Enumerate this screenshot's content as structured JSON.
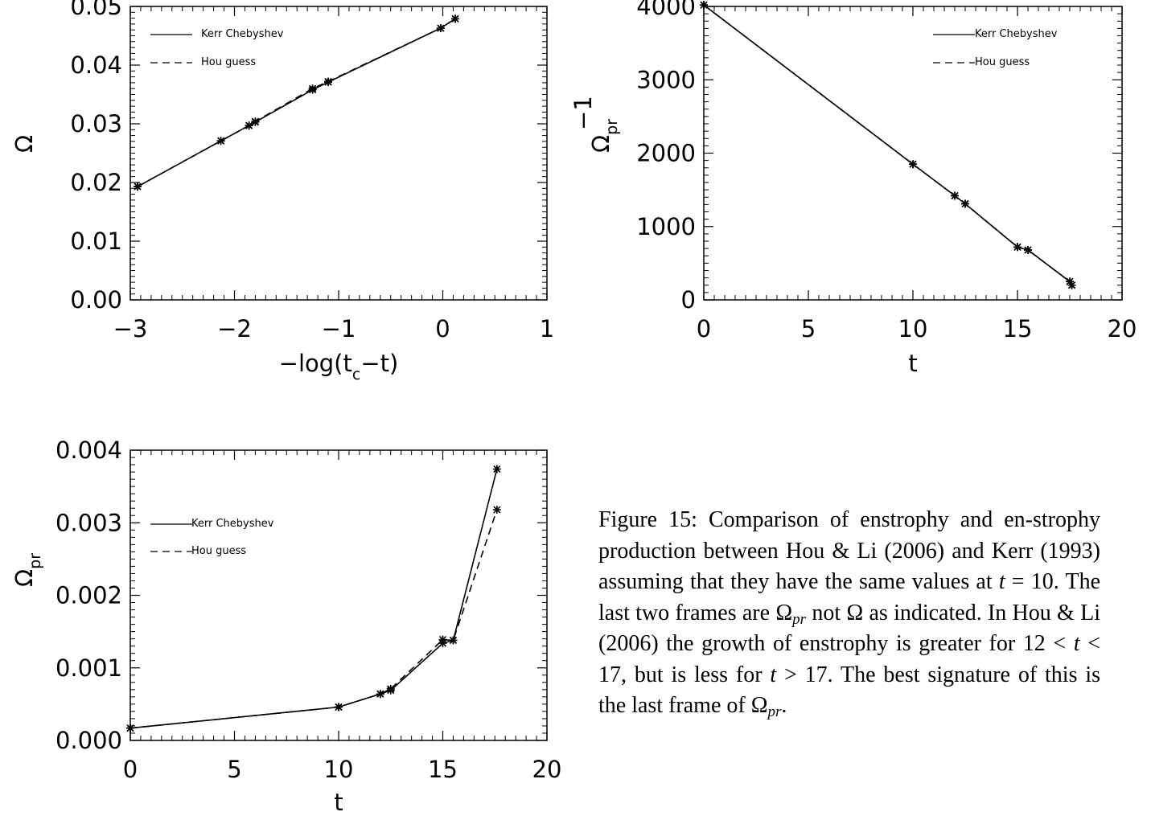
{
  "charts": [
    {
      "id": "omega",
      "type": "line",
      "xlabel": "−log(t  −t)",
      "xlabel_parts": {
        "pre": "−log(t",
        "sub": "c",
        "post": "−t)"
      },
      "ylabel": "Ω",
      "ylabel_sub": "",
      "xlim": [
        -3,
        1
      ],
      "ylim": [
        0.0,
        0.05
      ],
      "xticks": [
        -3,
        -2,
        -1,
        0,
        1
      ],
      "xtick_labels": [
        "−3",
        "−2",
        "−1",
        "0",
        "1"
      ],
      "yticks": [
        0.0,
        0.01,
        0.02,
        0.03,
        0.04,
        0.05
      ],
      "ytick_labels": [
        "0.00",
        "0.01",
        "0.02",
        "0.03",
        "0.04",
        "0.05"
      ],
      "legend": [
        {
          "name": "Kerr Chebyshev",
          "style": "solid"
        },
        {
          "name": "Hou guess",
          "style": "dashed"
        }
      ],
      "series": [
        {
          "name": "Kerr Chebyshev",
          "style": "solid",
          "x": [
            -2.93,
            -2.13,
            -1.86,
            -1.8,
            -1.25,
            -1.1,
            -0.02,
            0.12
          ],
          "y": [
            0.0193,
            0.0271,
            0.0297,
            0.0303,
            0.0358,
            0.0371,
            0.0463,
            0.0479
          ]
        },
        {
          "name": "Hou guess",
          "style": "dashed",
          "x": [
            -2.93,
            -2.13,
            -1.86,
            -1.8,
            -1.25,
            -1.1,
            -0.02,
            0.12
          ],
          "y": [
            0.0193,
            0.0271,
            0.0297,
            0.0304,
            0.036,
            0.0372,
            0.0463,
            0.0479
          ]
        }
      ]
    },
    {
      "id": "omega-pr-inverse",
      "type": "line",
      "xlabel": "t",
      "xlabel_parts": {
        "pre": "t",
        "sub": "",
        "post": ""
      },
      "ylabel": "Ω",
      "ylabel_sub": "pr",
      "ylabel_sup": "−1",
      "xlim": [
        0,
        20
      ],
      "ylim": [
        0,
        4000
      ],
      "xticks": [
        0,
        5,
        10,
        15,
        20
      ],
      "xtick_labels": [
        "0",
        "5",
        "10",
        "15",
        "20"
      ],
      "yticks": [
        0,
        1000,
        2000,
        3000,
        4000
      ],
      "ytick_labels": [
        "0",
        "1000",
        "2000",
        "3000",
        "4000"
      ],
      "legend": [
        {
          "name": "Kerr Chebyshev",
          "style": "solid"
        },
        {
          "name": "Hou guess",
          "style": "dashed"
        }
      ],
      "series": [
        {
          "name": "Kerr Chebyshev",
          "style": "solid",
          "x": [
            0,
            10,
            12,
            12.5,
            15,
            15.5,
            17.5,
            17.6
          ],
          "y": [
            4020,
            1850,
            1420,
            1310,
            720,
            680,
            250,
            200
          ]
        },
        {
          "name": "Hou guess",
          "style": "dashed",
          "x": [
            0,
            10,
            12,
            12.5,
            15,
            15.5,
            17.5,
            17.6
          ],
          "y": [
            4020,
            1850,
            1420,
            1310,
            720,
            680,
            250,
            200
          ]
        }
      ]
    },
    {
      "id": "omega-pr",
      "type": "line",
      "xlabel": "t",
      "xlabel_parts": {
        "pre": "t",
        "sub": "",
        "post": ""
      },
      "ylabel": "Ω",
      "ylabel_sub": "pr",
      "xlim": [
        0,
        20
      ],
      "ylim": [
        0,
        0.004
      ],
      "xticks": [
        0,
        5,
        10,
        15,
        20
      ],
      "xtick_labels": [
        "0",
        "5",
        "10",
        "15",
        "20"
      ],
      "yticks": [
        0.0,
        0.001,
        0.002,
        0.003,
        0.004
      ],
      "ytick_labels": [
        "0.000",
        "0.001",
        "0.002",
        "0.003",
        "0.004"
      ],
      "legend": [
        {
          "name": "Kerr Chebyshev",
          "style": "solid"
        },
        {
          "name": "Hou guess",
          "style": "dashed"
        }
      ],
      "series": [
        {
          "name": "Kerr Chebyshev",
          "style": "solid",
          "x": [
            0,
            10,
            12,
            12.5,
            15,
            15.5,
            17.6
          ],
          "y": [
            0.00017,
            0.00046,
            0.00064,
            0.00069,
            0.00134,
            0.00138,
            0.00374
          ]
        },
        {
          "name": "Hou guess",
          "style": "dashed",
          "x": [
            0,
            10,
            12,
            12.5,
            15,
            15.5,
            17.6
          ],
          "y": [
            0.00017,
            0.00046,
            0.00064,
            0.00071,
            0.00139,
            0.00138,
            0.00318
          ]
        }
      ]
    }
  ],
  "caption": {
    "label": "Figure 15:",
    "p1": " Comparison of enstrophy and en-strophy production between Hou & Li  (2006) and Kerr  (1993) assuming that they have the same values at ",
    "var_t1": "t",
    "p2": " = 10.  The last two frames are ",
    "omega": "Ω",
    "pr": "pr",
    "p3": " not Ω as indicated.  In Hou & Li (2006) the growth of enstrophy is greater for 12 < ",
    "var_t2": "t",
    "p4": " < 17, but is less for ",
    "var_t3": "t",
    "p5": " > 17.  The best signature of this is the last frame of ",
    "p6": "."
  }
}
